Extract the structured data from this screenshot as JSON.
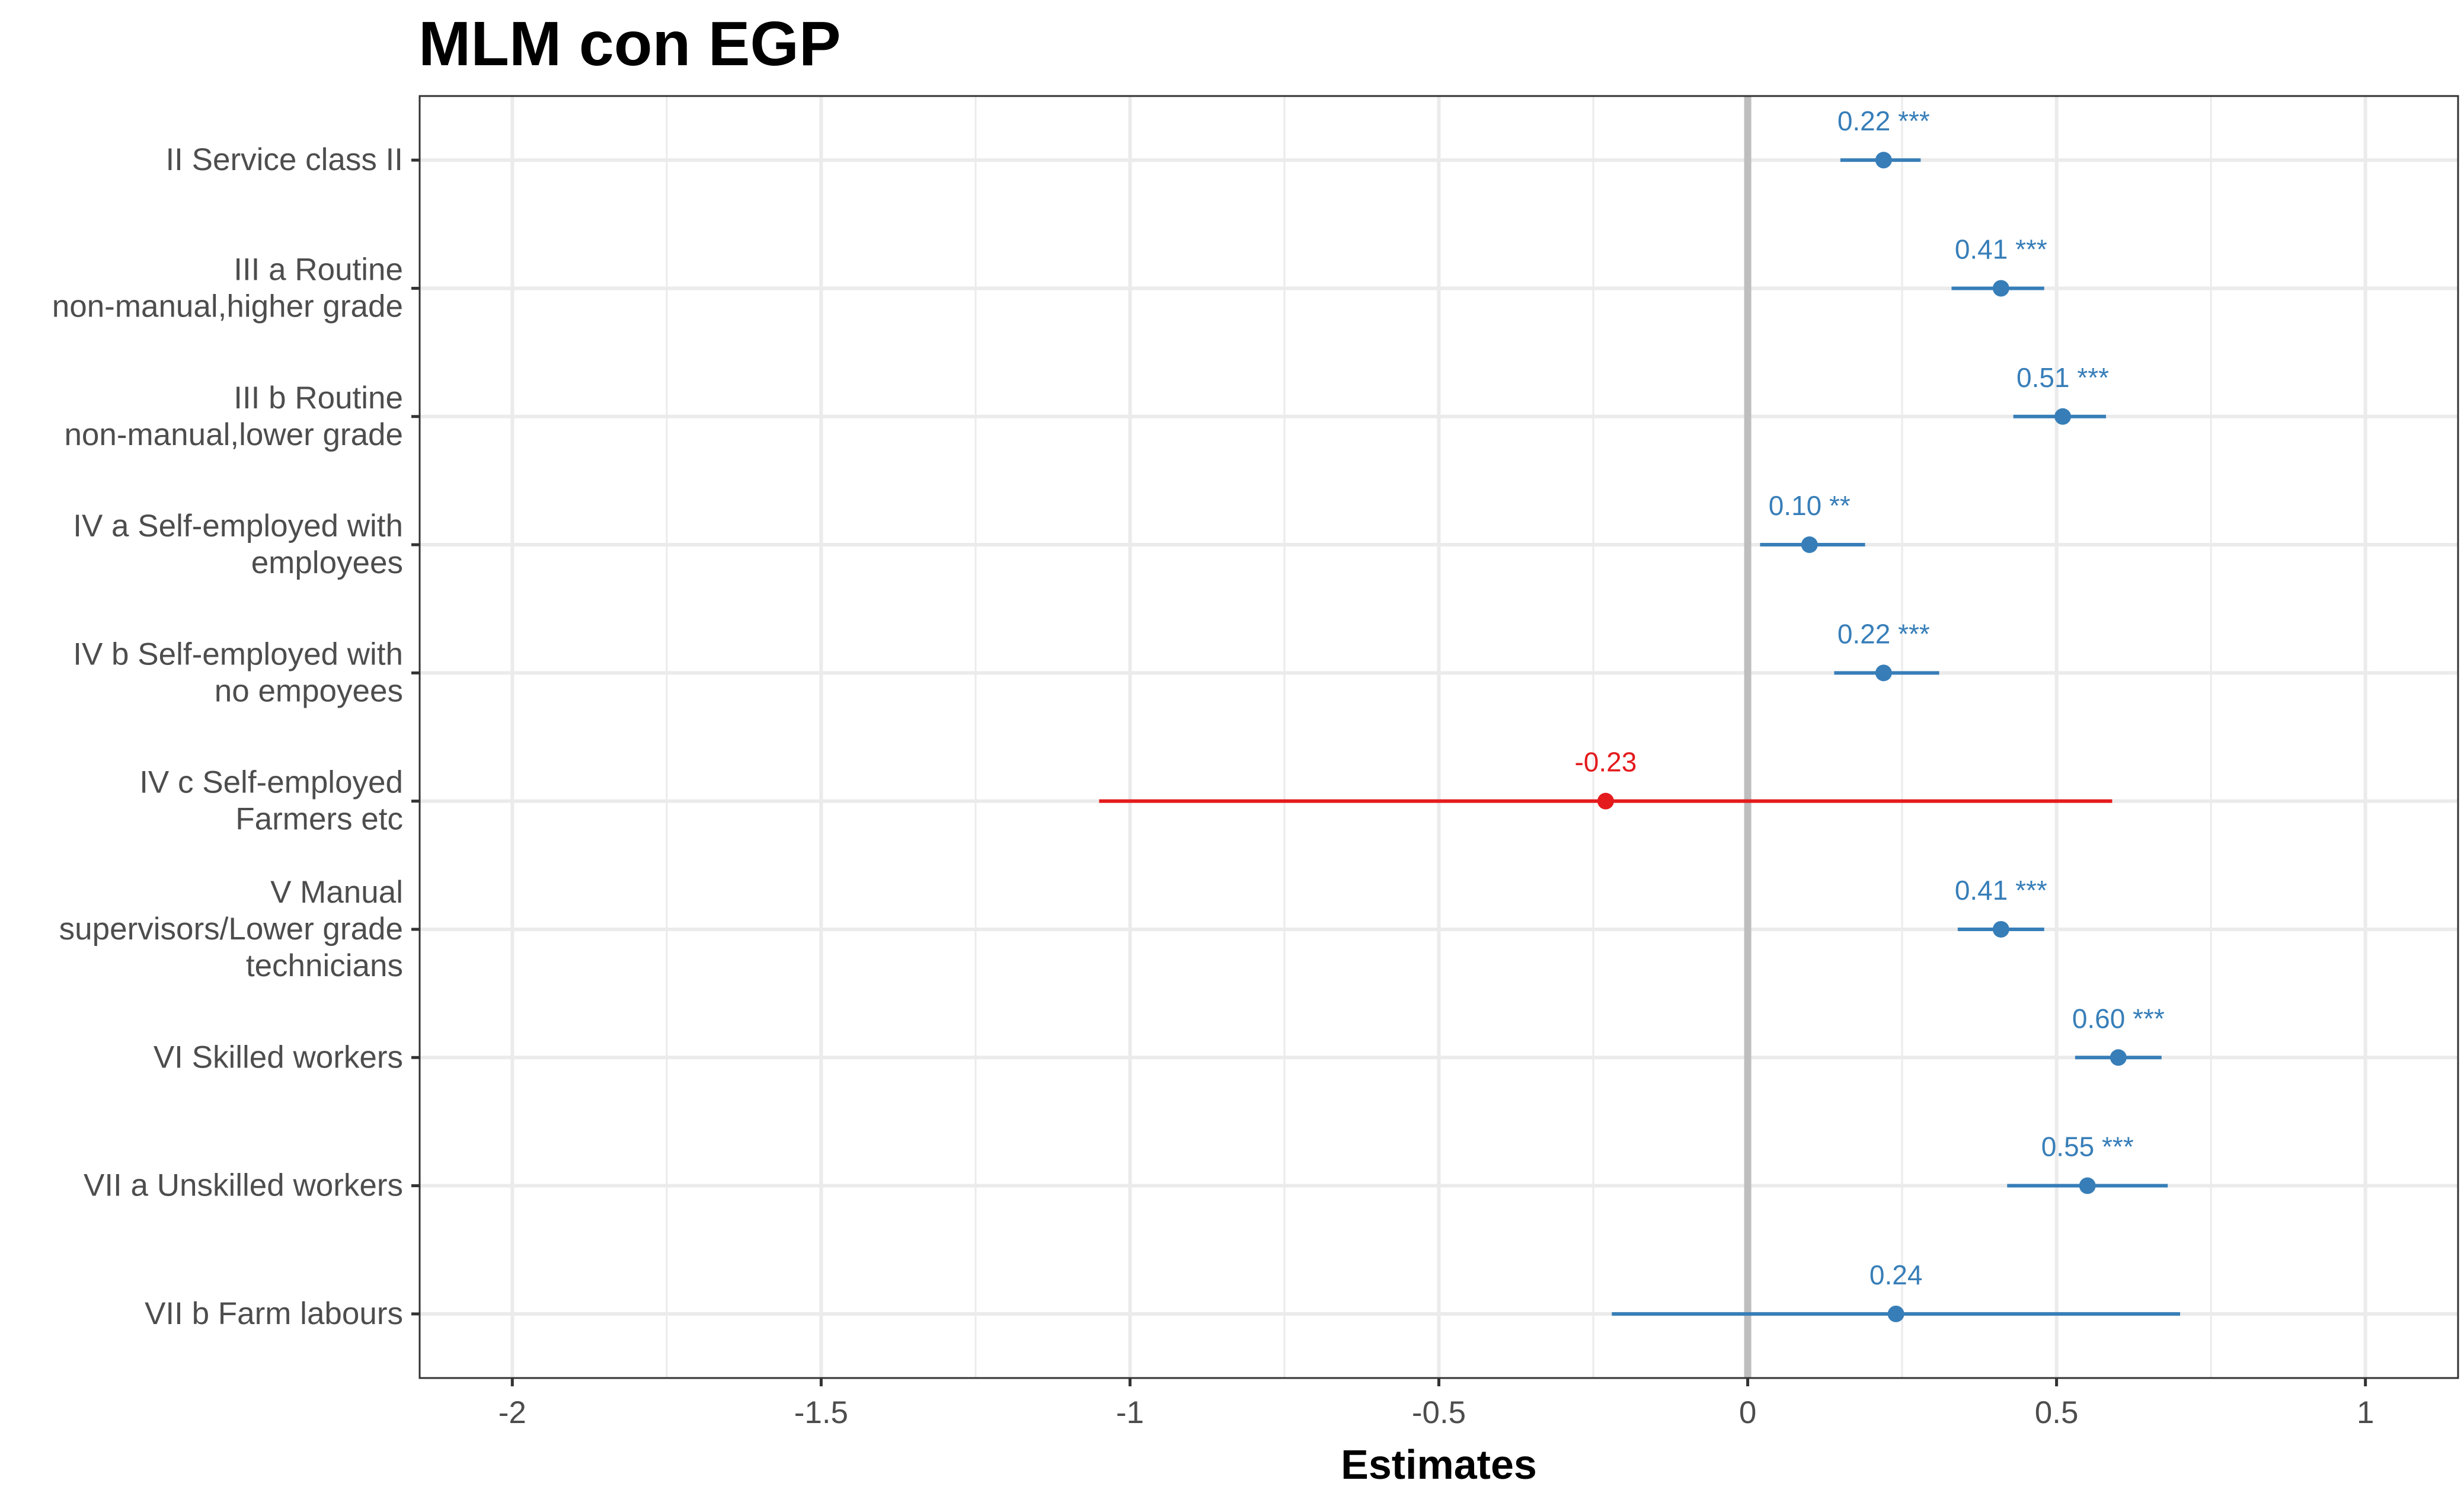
{
  "chart_data": {
    "type": "scatter",
    "subtype": "coefficient-plot",
    "title": "MLM con EGP",
    "xlabel": "Estimates",
    "ylabel": "",
    "xlim": [
      -2.15,
      1.15
    ],
    "x_ticks": [
      -2,
      -1.5,
      -1,
      -0.5,
      0,
      0.5,
      1
    ],
    "x_tick_labels": [
      "-2",
      "-1.5",
      "-1",
      "-0.5",
      "0",
      "0.5",
      "1"
    ],
    "reference_line": 0,
    "grid": true,
    "legend": "none",
    "colors": {
      "positive": "#377EB8",
      "negative": "#E41A1C",
      "reference": "#BEBEBE",
      "grid": "#EBEBEB"
    },
    "categories": [
      [
        "II Service class II"
      ],
      [
        "III a Routine",
        "non-manual,higher grade"
      ],
      [
        "III b Routine",
        "non-manual,lower grade"
      ],
      [
        "IV a Self-employed with",
        "employees"
      ],
      [
        "IV b Self-employed with",
        "no empoyees"
      ],
      [
        "IV c Self-employed",
        "Farmers etc"
      ],
      [
        "V Manual",
        "supervisors/Lower grade",
        "technicians"
      ],
      [
        "VI Skilled workers"
      ],
      [
        "VII a Unskilled workers"
      ],
      [
        "VII b Farm labours"
      ]
    ],
    "estimates": [
      0.22,
      0.41,
      0.51,
      0.1,
      0.22,
      -0.23,
      0.41,
      0.6,
      0.55,
      0.24
    ],
    "ci_low": [
      0.15,
      0.33,
      0.43,
      0.02,
      0.14,
      -1.05,
      0.34,
      0.53,
      0.42,
      -0.22
    ],
    "ci_high": [
      0.28,
      0.48,
      0.58,
      0.19,
      0.31,
      0.59,
      0.48,
      0.67,
      0.68,
      0.7
    ],
    "value_labels": [
      "0.22 ***",
      "0.41 ***",
      "0.51 ***",
      "0.10 **",
      "0.22 ***",
      "-0.23",
      "0.41 ***",
      "0.60 ***",
      "0.55 ***",
      "0.24"
    ]
  }
}
